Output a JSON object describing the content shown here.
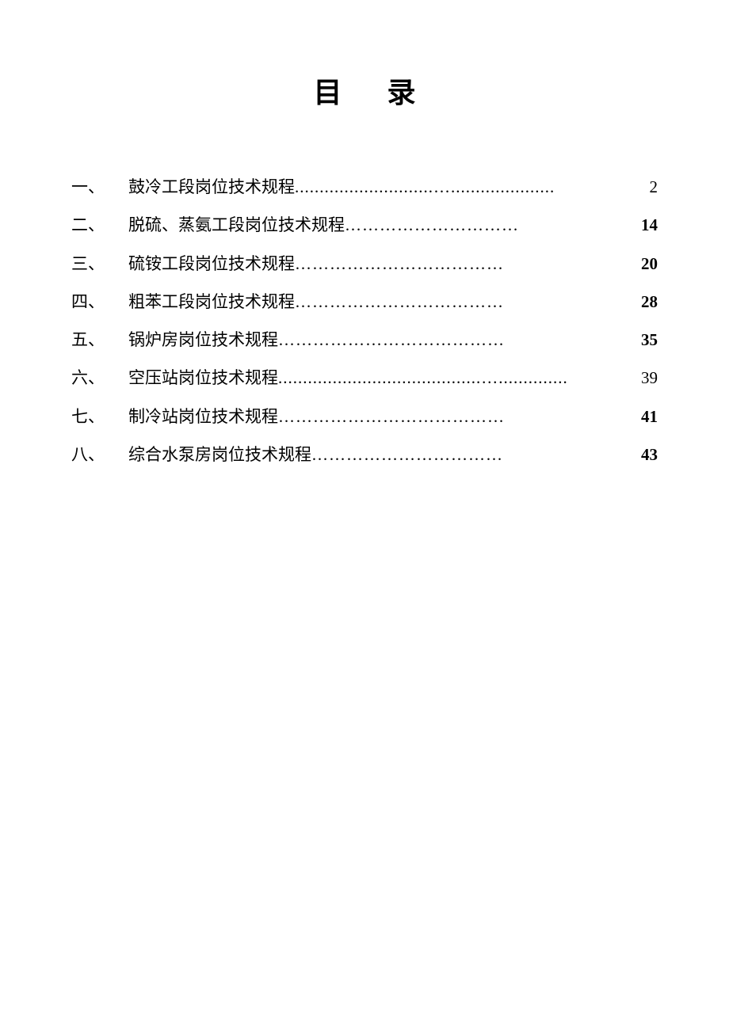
{
  "title": "目 录",
  "text_color": "#000000",
  "background_color": "#ffffff",
  "title_fontsize": 36,
  "body_fontsize": 21,
  "line_height": 2.3,
  "toc": [
    {
      "num": "一、",
      "label": "鼓冷工段岗位技术规程",
      "leader": "............................….....................",
      "page": " 2",
      "page_weight": "normal"
    },
    {
      "num": "二、",
      "label": "脱硫、蒸氨工段岗位技术规程",
      "leader": "…………………………",
      "page": "14",
      "page_weight": "bold"
    },
    {
      "num": "三、",
      "label": "硫铵工段岗位技术规程",
      "leader": "………………………………",
      "page": "20",
      "page_weight": "bold"
    },
    {
      "num": "四、",
      "label": "粗苯工段岗位技术规程",
      "leader": "………………………………",
      "page": "28",
      "page_weight": "bold"
    },
    {
      "num": "五、",
      "label": "锅炉房岗位技术规程",
      "leader": "…………………………………",
      "page": "35",
      "page_weight": "bold"
    },
    {
      "num": "六、",
      "label": "空压站岗位技术规程",
      "leader": ".........................................…..............",
      "page": " 39",
      "page_weight": "normal"
    },
    {
      "num": "七、",
      "label": "制冷站岗位技术规程",
      "leader": "…………………………………",
      "page": "41",
      "page_weight": "bold"
    },
    {
      "num": "八、",
      "label": "综合水泵房岗位技术规程",
      "leader": "……………………………",
      "page": "43",
      "page_weight": "bold"
    }
  ]
}
